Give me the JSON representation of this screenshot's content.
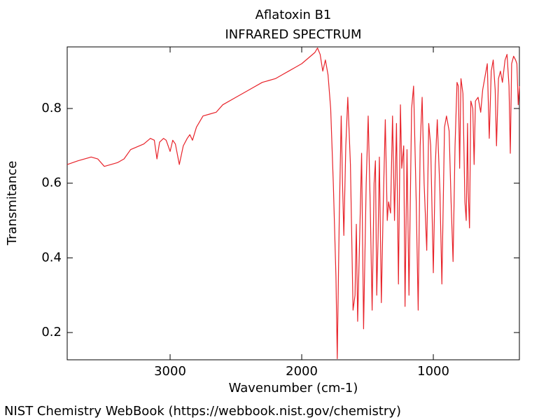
{
  "chart_data": {
    "type": "line",
    "title": "Aflatoxin B1",
    "subtitle": "INFRARED SPECTRUM",
    "x_label": "Wavenumber (cm-1)",
    "y_label": "Transmitance",
    "xlim": [
      3782,
      346
    ],
    "ylim": [
      0.127,
      0.965
    ],
    "xticks": [
      3000,
      2000,
      1000
    ],
    "yticks": [
      0.8,
      0.6,
      0.4,
      0.2
    ],
    "x": [
      3782,
      3700,
      3600,
      3550,
      3500,
      3450,
      3400,
      3350,
      3300,
      3200,
      3150,
      3120,
      3100,
      3080,
      3050,
      3030,
      3000,
      2980,
      2960,
      2930,
      2900,
      2870,
      2850,
      2830,
      2800,
      2750,
      2700,
      2650,
      2600,
      2500,
      2400,
      2300,
      2250,
      2200,
      2150,
      2100,
      2050,
      2000,
      1950,
      1900,
      1880,
      1860,
      1840,
      1820,
      1800,
      1780,
      1760,
      1740,
      1730,
      1715,
      1700,
      1690,
      1680,
      1665,
      1650,
      1630,
      1610,
      1595,
      1585,
      1575,
      1560,
      1545,
      1530,
      1510,
      1495,
      1480,
      1465,
      1450,
      1440,
      1430,
      1420,
      1410,
      1395,
      1380,
      1365,
      1350,
      1340,
      1325,
      1310,
      1295,
      1280,
      1265,
      1250,
      1240,
      1225,
      1215,
      1200,
      1185,
      1165,
      1150,
      1130,
      1115,
      1100,
      1085,
      1070,
      1050,
      1035,
      1020,
      1000,
      985,
      970,
      950,
      935,
      915,
      900,
      880,
      865,
      850,
      835,
      820,
      810,
      800,
      790,
      775,
      760,
      750,
      740,
      735,
      725,
      715,
      700,
      690,
      680,
      660,
      640,
      625,
      610,
      590,
      575,
      560,
      545,
      530,
      520,
      505,
      490,
      475,
      455,
      440,
      425,
      415,
      405,
      390,
      375,
      365,
      355,
      346
    ],
    "series": [
      {
        "name": "Aflatoxin B1",
        "color": "#e8232a",
        "values": [
          0.65,
          0.66,
          0.67,
          0.665,
          0.645,
          0.65,
          0.655,
          0.665,
          0.69,
          0.705,
          0.72,
          0.715,
          0.665,
          0.71,
          0.72,
          0.715,
          0.685,
          0.715,
          0.705,
          0.65,
          0.7,
          0.72,
          0.73,
          0.715,
          0.75,
          0.78,
          0.785,
          0.79,
          0.81,
          0.83,
          0.85,
          0.87,
          0.875,
          0.88,
          0.89,
          0.9,
          0.91,
          0.92,
          0.935,
          0.95,
          0.962,
          0.945,
          0.9,
          0.93,
          0.89,
          0.8,
          0.6,
          0.35,
          0.13,
          0.5,
          0.78,
          0.6,
          0.46,
          0.7,
          0.83,
          0.65,
          0.26,
          0.3,
          0.49,
          0.23,
          0.45,
          0.68,
          0.21,
          0.6,
          0.78,
          0.55,
          0.26,
          0.6,
          0.66,
          0.3,
          0.45,
          0.67,
          0.28,
          0.55,
          0.77,
          0.5,
          0.55,
          0.52,
          0.78,
          0.5,
          0.76,
          0.33,
          0.81,
          0.64,
          0.7,
          0.27,
          0.69,
          0.3,
          0.8,
          0.86,
          0.55,
          0.26,
          0.7,
          0.83,
          0.6,
          0.42,
          0.76,
          0.7,
          0.36,
          0.65,
          0.77,
          0.58,
          0.33,
          0.75,
          0.78,
          0.74,
          0.55,
          0.39,
          0.7,
          0.87,
          0.86,
          0.64,
          0.88,
          0.84,
          0.55,
          0.5,
          0.76,
          0.58,
          0.48,
          0.82,
          0.8,
          0.65,
          0.82,
          0.83,
          0.79,
          0.85,
          0.88,
          0.92,
          0.72,
          0.9,
          0.93,
          0.85,
          0.7,
          0.88,
          0.9,
          0.87,
          0.93,
          0.945,
          0.86,
          0.68,
          0.92,
          0.94,
          0.93,
          0.92,
          0.81,
          0.86
        ]
      }
    ]
  },
  "footer": "NIST Chemistry WebBook (https://webbook.nist.gov/chemistry)"
}
